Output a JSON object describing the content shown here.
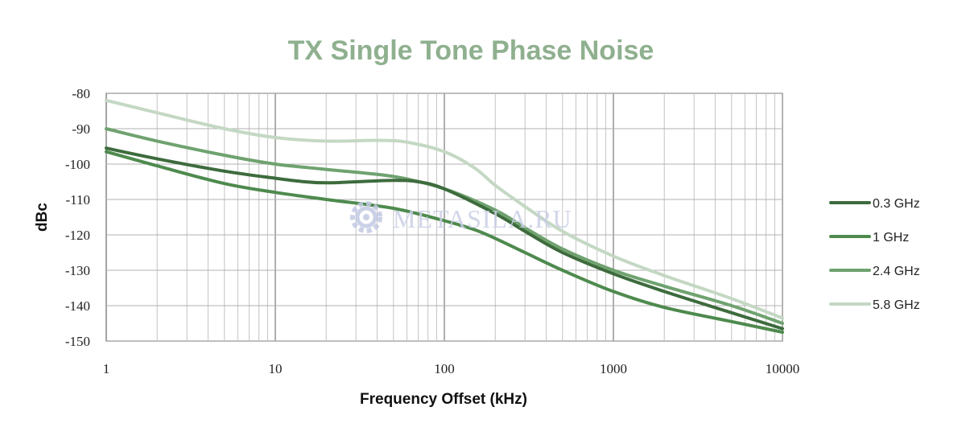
{
  "chart_data": {
    "type": "line",
    "title": "TX Single Tone Phase Noise",
    "xlabel": "Frequency Offset (kHz)",
    "ylabel": "dBc",
    "x_scale": "log",
    "xlim": [
      1,
      10000
    ],
    "ylim": [
      -150,
      -80
    ],
    "x_ticks": [
      1,
      10,
      100,
      1000,
      10000
    ],
    "x_tick_labels": [
      "1",
      "10",
      "100",
      "1000",
      "10000"
    ],
    "y_ticks": [
      -80,
      -90,
      -100,
      -110,
      -120,
      -130,
      -140,
      -150
    ],
    "y_tick_labels": [
      "-80",
      "-90",
      "-100",
      "-110",
      "-120",
      "-130",
      "-140",
      "-150"
    ],
    "grid": true,
    "legend_position": "right",
    "series": [
      {
        "name": "0.3 GHz",
        "color": "#3d6b3d",
        "points": [
          [
            1,
            -95.5
          ],
          [
            2,
            -98.5
          ],
          [
            5,
            -102
          ],
          [
            10,
            -104
          ],
          [
            15,
            -105
          ],
          [
            20,
            -105.3
          ],
          [
            30,
            -105
          ],
          [
            50,
            -104.6
          ],
          [
            70,
            -105
          ],
          [
            100,
            -107
          ],
          [
            200,
            -114
          ],
          [
            300,
            -119
          ],
          [
            500,
            -125
          ],
          [
            1000,
            -131
          ],
          [
            2000,
            -136
          ],
          [
            5000,
            -142
          ],
          [
            10000,
            -146.5
          ]
        ]
      },
      {
        "name": "1 GHz",
        "color": "#4e8a4e",
        "points": [
          [
            1,
            -96.5
          ],
          [
            2,
            -100.5
          ],
          [
            5,
            -105.5
          ],
          [
            10,
            -108
          ],
          [
            20,
            -110
          ],
          [
            50,
            -112.5
          ],
          [
            100,
            -116
          ],
          [
            150,
            -118.5
          ],
          [
            200,
            -121
          ],
          [
            300,
            -125
          ],
          [
            500,
            -130
          ],
          [
            1000,
            -136
          ],
          [
            2000,
            -140.5
          ],
          [
            5000,
            -144.5
          ],
          [
            10000,
            -147.5
          ]
        ]
      },
      {
        "name": "2.4 GHz",
        "color": "#6fa26f",
        "points": [
          [
            1,
            -90
          ],
          [
            2,
            -93.5
          ],
          [
            5,
            -97.5
          ],
          [
            10,
            -100
          ],
          [
            20,
            -101.5
          ],
          [
            50,
            -103.5
          ],
          [
            100,
            -107
          ],
          [
            200,
            -113
          ],
          [
            300,
            -118
          ],
          [
            500,
            -124
          ],
          [
            1000,
            -130
          ],
          [
            2000,
            -134.5
          ],
          [
            5000,
            -140
          ],
          [
            10000,
            -145
          ]
        ]
      },
      {
        "name": "5.8 GHz",
        "color": "#c4d8c4",
        "points": [
          [
            1,
            -82
          ],
          [
            2,
            -85.5
          ],
          [
            5,
            -90
          ],
          [
            10,
            -92.5
          ],
          [
            20,
            -93.5
          ],
          [
            40,
            -93.3
          ],
          [
            60,
            -93.8
          ],
          [
            100,
            -96.5
          ],
          [
            150,
            -101
          ],
          [
            200,
            -106
          ],
          [
            300,
            -112
          ],
          [
            500,
            -119
          ],
          [
            1000,
            -126
          ],
          [
            2000,
            -131.5
          ],
          [
            5000,
            -138
          ],
          [
            10000,
            -143.5
          ]
        ]
      }
    ]
  },
  "watermark": {
    "text": "METASILA.RU",
    "icon": "gear-icon"
  }
}
